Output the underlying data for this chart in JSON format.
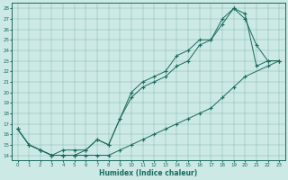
{
  "xlabel": "Humidex (Indice chaleur)",
  "xlim": [
    -0.5,
    23.5
  ],
  "ylim": [
    13.5,
    28.5
  ],
  "xticks": [
    0,
    1,
    2,
    3,
    4,
    5,
    6,
    7,
    8,
    9,
    10,
    11,
    12,
    13,
    14,
    15,
    16,
    17,
    18,
    19,
    20,
    21,
    22,
    23
  ],
  "yticks": [
    14,
    15,
    16,
    17,
    18,
    19,
    20,
    21,
    22,
    23,
    24,
    25,
    26,
    27,
    28
  ],
  "bg_color": "#cce9e5",
  "line_color": "#1a6b5e",
  "line1_x": [
    0,
    1,
    2,
    3,
    4,
    5,
    6,
    7,
    8,
    9,
    10,
    11,
    12,
    13,
    14,
    15,
    16,
    17,
    18,
    19,
    20,
    22,
    23
  ],
  "line1_y": [
    16.5,
    15.0,
    14.5,
    14.0,
    14.0,
    14.0,
    14.0,
    14.0,
    14.0,
    14.5,
    15.0,
    15.5,
    16.0,
    16.5,
    17.0,
    17.5,
    18.0,
    18.5,
    19.5,
    20.5,
    21.5,
    22.5,
    23.0
  ],
  "line2_x": [
    0,
    1,
    2,
    3,
    4,
    5,
    6,
    7,
    8,
    9,
    10,
    11,
    12,
    13,
    14,
    15,
    16,
    17,
    18,
    19,
    20,
    21,
    22,
    23
  ],
  "line2_y": [
    16.5,
    15.0,
    14.5,
    14.0,
    14.0,
    14.0,
    14.5,
    15.5,
    15.0,
    17.5,
    19.5,
    20.5,
    21.0,
    21.5,
    22.5,
    23.0,
    24.5,
    25.0,
    26.5,
    28.0,
    27.0,
    24.5,
    23.0,
    23.0
  ],
  "line3_x": [
    0,
    1,
    2,
    3,
    4,
    5,
    6,
    7,
    8,
    9,
    10,
    11,
    12,
    13,
    14,
    15,
    16,
    17,
    18,
    19,
    20,
    21,
    22,
    23
  ],
  "line3_y": [
    16.5,
    15.0,
    14.5,
    14.0,
    14.5,
    14.5,
    14.5,
    15.5,
    15.0,
    17.5,
    20.0,
    21.0,
    21.5,
    22.0,
    23.5,
    24.0,
    25.0,
    25.0,
    27.0,
    28.0,
    27.5,
    22.5,
    23.0,
    23.0
  ]
}
